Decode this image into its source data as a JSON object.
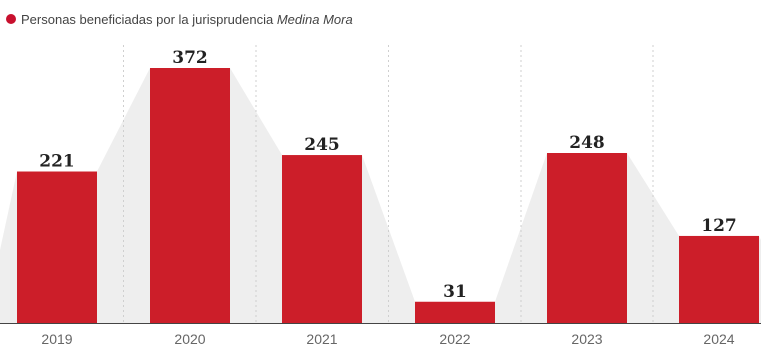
{
  "legend": {
    "prefix": "Personas beneficiadas por la jurisprudencia ",
    "emphasis": "Medina Mora"
  },
  "colors": {
    "bar": "#cc1e29",
    "legend_dot": "#c8102e",
    "connector": "#eeeeee",
    "axis": "#444444",
    "separator": "#cfcfcf"
  },
  "chart_data": {
    "type": "bar",
    "categories": [
      "2019",
      "2020",
      "2021",
      "2022",
      "2023",
      "2024"
    ],
    "series": [
      {
        "name": "Personas beneficiadas por la jurisprudencia Medina Mora",
        "values": [
          221,
          372,
          245,
          31,
          248,
          127
        ]
      }
    ],
    "title": "",
    "xlabel": "",
    "ylabel": "",
    "ylim": [
      0,
      372
    ],
    "grid": false,
    "data_labels": true,
    "legend_position": "top-left"
  }
}
